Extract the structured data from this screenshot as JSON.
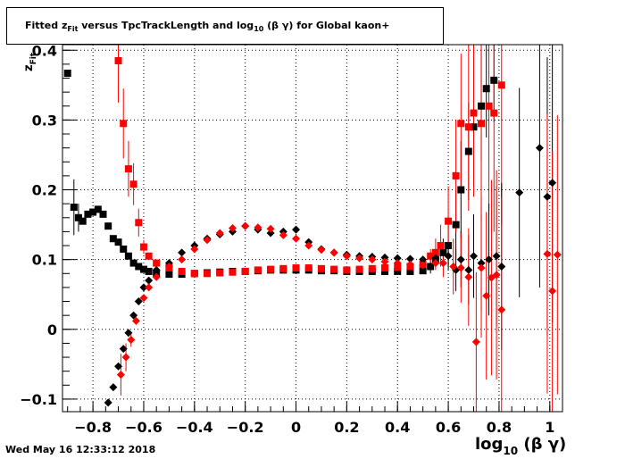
{
  "chart_data": {
    "type": "scatter",
    "title_parts": [
      "Fitted  z",
      "Fit",
      "  versus TpcTrackLength and log",
      "10",
      " (β γ) for Global kaon+"
    ],
    "ylabel_parts": [
      "z",
      "Fit"
    ],
    "xlabel_parts": [
      "log",
      "10",
      " (β γ)"
    ],
    "xlim": [
      -0.92,
      1.05
    ],
    "ylim": [
      -0.118,
      0.408
    ],
    "x_ticks": [
      -0.8,
      -0.6,
      -0.4,
      -0.2,
      0,
      0.2,
      0.4,
      0.6,
      0.8,
      1
    ],
    "x_tick_labels": [
      "−0.8",
      "−0.6",
      "−0.4",
      "−0.2",
      "0",
      "0.2",
      "0.4",
      "0.6",
      "0.8",
      "1"
    ],
    "y_ticks": [
      -0.1,
      0,
      0.1,
      0.2,
      0.3,
      0.4
    ],
    "y_tick_labels": [
      "−0.1",
      "0",
      "0.1",
      "0.2",
      "0.3",
      "0.4"
    ],
    "grid": true,
    "series": [
      {
        "marker": "square",
        "color": "#000000",
        "points": [
          [
            -0.9,
            0.367,
            0
          ],
          [
            -0.875,
            0.175,
            0.04
          ],
          [
            -0.857,
            0.16,
            0.02
          ],
          [
            -0.84,
            0.155,
            0
          ],
          [
            -0.82,
            0.165,
            0
          ],
          [
            -0.8,
            0.168,
            0
          ],
          [
            -0.78,
            0.172,
            0
          ],
          [
            -0.76,
            0.165,
            0
          ],
          [
            -0.74,
            0.148,
            0
          ],
          [
            -0.72,
            0.13,
            0
          ],
          [
            -0.7,
            0.125,
            0
          ],
          [
            -0.68,
            0.115,
            0
          ],
          [
            -0.66,
            0.105,
            0
          ],
          [
            -0.64,
            0.095,
            0
          ],
          [
            -0.62,
            0.09,
            0
          ],
          [
            -0.6,
            0.086,
            0
          ],
          [
            -0.58,
            0.083,
            0
          ],
          [
            -0.55,
            0.08,
            0
          ],
          [
            -0.5,
            0.079,
            0
          ],
          [
            -0.45,
            0.079,
            0
          ],
          [
            -0.4,
            0.08,
            0
          ],
          [
            -0.35,
            0.081,
            0
          ],
          [
            -0.3,
            0.082,
            0
          ],
          [
            -0.25,
            0.083,
            0
          ],
          [
            -0.2,
            0.083,
            0
          ],
          [
            -0.15,
            0.084,
            0
          ],
          [
            -0.1,
            0.085,
            0
          ],
          [
            -0.05,
            0.085,
            0
          ],
          [
            0,
            0.085,
            0
          ],
          [
            0.05,
            0.085,
            0
          ],
          [
            0.1,
            0.084,
            0
          ],
          [
            0.15,
            0.084,
            0
          ],
          [
            0.2,
            0.083,
            0
          ],
          [
            0.25,
            0.083,
            0
          ],
          [
            0.3,
            0.083,
            0
          ],
          [
            0.35,
            0.083,
            0
          ],
          [
            0.4,
            0.083,
            0
          ],
          [
            0.45,
            0.083,
            0
          ],
          [
            0.5,
            0.084,
            0
          ],
          [
            0.53,
            0.09,
            0.01
          ],
          [
            0.55,
            0.1,
            0.01
          ],
          [
            0.58,
            0.11,
            0.02
          ],
          [
            0.6,
            0.12,
            0.03
          ],
          [
            0.63,
            0.15,
            0.05
          ],
          [
            0.65,
            0.2,
            0.07
          ],
          [
            0.68,
            0.255,
            0.07
          ],
          [
            0.7,
            0.29,
            0.08
          ],
          [
            0.73,
            0.32,
            0.08
          ],
          [
            0.75,
            0.345,
            0.07
          ],
          [
            0.78,
            0.357,
            0.06
          ]
        ]
      },
      {
        "marker": "square",
        "color": "#ff0000",
        "points": [
          [
            -0.7,
            0.385,
            0.06
          ],
          [
            -0.68,
            0.295,
            0.05
          ],
          [
            -0.66,
            0.23,
            0.04
          ],
          [
            -0.64,
            0.208,
            0.03
          ],
          [
            -0.62,
            0.153,
            0.02
          ],
          [
            -0.6,
            0.118,
            0.01
          ],
          [
            -0.58,
            0.105,
            0
          ],
          [
            -0.55,
            0.095,
            0
          ],
          [
            -0.5,
            0.088,
            0
          ],
          [
            -0.45,
            0.083,
            0
          ],
          [
            -0.4,
            0.08,
            0
          ],
          [
            -0.35,
            0.08,
            0
          ],
          [
            -0.3,
            0.081,
            0
          ],
          [
            -0.25,
            0.082,
            0
          ],
          [
            -0.2,
            0.083,
            0
          ],
          [
            -0.15,
            0.085,
            0
          ],
          [
            -0.1,
            0.086,
            0
          ],
          [
            -0.05,
            0.087,
            0
          ],
          [
            0,
            0.088,
            0
          ],
          [
            0.05,
            0.088,
            0
          ],
          [
            0.1,
            0.087,
            0
          ],
          [
            0.15,
            0.086,
            0
          ],
          [
            0.2,
            0.085,
            0
          ],
          [
            0.25,
            0.086,
            0
          ],
          [
            0.3,
            0.087,
            0
          ],
          [
            0.35,
            0.088,
            0
          ],
          [
            0.4,
            0.089,
            0
          ],
          [
            0.45,
            0.09,
            0
          ],
          [
            0.5,
            0.093,
            0
          ],
          [
            0.53,
            0.105,
            0.01
          ],
          [
            0.55,
            0.11,
            0.02
          ],
          [
            0.57,
            0.12,
            0.03
          ],
          [
            0.6,
            0.155,
            0.05
          ],
          [
            0.63,
            0.22,
            0.08
          ],
          [
            0.65,
            0.295,
            0.1
          ],
          [
            0.68,
            0.29,
            0.12
          ],
          [
            0.7,
            0.31,
            0.12
          ],
          [
            0.73,
            0.295,
            0.14
          ],
          [
            0.76,
            0.32,
            0.15
          ],
          [
            0.78,
            0.31,
            0.17
          ],
          [
            0.81,
            0.35,
            0.2
          ]
        ]
      },
      {
        "marker": "diamond",
        "color": "#000000",
        "points": [
          [
            -0.76,
            -0.12,
            0
          ],
          [
            -0.74,
            -0.105,
            0
          ],
          [
            -0.72,
            -0.083,
            0
          ],
          [
            -0.7,
            -0.053,
            0
          ],
          [
            -0.68,
            -0.028,
            0
          ],
          [
            -0.66,
            -0.005,
            0
          ],
          [
            -0.64,
            0.02,
            0
          ],
          [
            -0.62,
            0.04,
            0
          ],
          [
            -0.6,
            0.06,
            0
          ],
          [
            -0.58,
            0.07,
            0
          ],
          [
            -0.55,
            0.085,
            0
          ],
          [
            -0.5,
            0.095,
            0
          ],
          [
            -0.45,
            0.11,
            0
          ],
          [
            -0.4,
            0.12,
            0
          ],
          [
            -0.35,
            0.13,
            0
          ],
          [
            -0.3,
            0.136,
            0
          ],
          [
            -0.25,
            0.14,
            0
          ],
          [
            -0.2,
            0.148,
            0
          ],
          [
            -0.15,
            0.143,
            0
          ],
          [
            -0.1,
            0.138,
            0
          ],
          [
            -0.05,
            0.14,
            0
          ],
          [
            0,
            0.143,
            0
          ],
          [
            0.05,
            0.125,
            0
          ],
          [
            0.1,
            0.115,
            0
          ],
          [
            0.15,
            0.11,
            0
          ],
          [
            0.2,
            0.107,
            0
          ],
          [
            0.25,
            0.105,
            0
          ],
          [
            0.3,
            0.104,
            0
          ],
          [
            0.35,
            0.103,
            0
          ],
          [
            0.4,
            0.102,
            0
          ],
          [
            0.45,
            0.101,
            0
          ],
          [
            0.5,
            0.1,
            0
          ],
          [
            0.55,
            0.102,
            0.01
          ],
          [
            0.6,
            0.105,
            0.02
          ],
          [
            0.63,
            0.085,
            0.03
          ],
          [
            0.65,
            0.1,
            0.04
          ],
          [
            0.68,
            0.085,
            0.05
          ],
          [
            0.7,
            0.105,
            0.06
          ],
          [
            0.73,
            0.095,
            0.07
          ],
          [
            0.76,
            0.1,
            0.08
          ],
          [
            0.79,
            0.105,
            0.1
          ],
          [
            0.81,
            0.09,
            0.12
          ],
          [
            0.88,
            0.196,
            0.15
          ],
          [
            0.96,
            0.26,
            0.2
          ],
          [
            0.99,
            0.19,
            0.2
          ],
          [
            1.01,
            0.21,
            0.2
          ]
        ]
      },
      {
        "marker": "diamond",
        "color": "#ff0000",
        "points": [
          [
            -0.69,
            -0.065,
            0.03
          ],
          [
            -0.67,
            -0.04,
            0.02
          ],
          [
            -0.65,
            -0.015,
            0.01
          ],
          [
            -0.63,
            0.012,
            0
          ],
          [
            -0.6,
            0.045,
            0
          ],
          [
            -0.58,
            0.06,
            0
          ],
          [
            -0.55,
            0.075,
            0
          ],
          [
            -0.5,
            0.09,
            0
          ],
          [
            -0.45,
            0.1,
            0
          ],
          [
            -0.4,
            0.115,
            0
          ],
          [
            -0.35,
            0.128,
            0
          ],
          [
            -0.3,
            0.138,
            0
          ],
          [
            -0.25,
            0.145,
            0
          ],
          [
            -0.2,
            0.148,
            0
          ],
          [
            -0.15,
            0.146,
            0
          ],
          [
            -0.1,
            0.144,
            0
          ],
          [
            -0.05,
            0.135,
            0
          ],
          [
            0,
            0.13,
            0
          ],
          [
            0.05,
            0.12,
            0
          ],
          [
            0.1,
            0.114,
            0
          ],
          [
            0.15,
            0.11,
            0
          ],
          [
            0.2,
            0.105,
            0
          ],
          [
            0.25,
            0.102,
            0
          ],
          [
            0.3,
            0.1,
            0
          ],
          [
            0.35,
            0.097,
            0
          ],
          [
            0.4,
            0.095,
            0
          ],
          [
            0.45,
            0.093,
            0
          ],
          [
            0.5,
            0.092,
            0
          ],
          [
            0.55,
            0.095,
            0.01
          ],
          [
            0.58,
            0.095,
            0.02
          ],
          [
            0.62,
            0.09,
            0.04
          ],
          [
            0.65,
            0.088,
            0.05
          ],
          [
            0.68,
            0.075,
            0.07
          ],
          [
            0.71,
            -0.018,
            0.1
          ],
          [
            0.73,
            0.088,
            0.1
          ],
          [
            0.75,
            0.048,
            0.12
          ],
          [
            0.77,
            0.074,
            0.14
          ],
          [
            0.79,
            0.078,
            0.15
          ],
          [
            0.81,
            0.028,
            0.16
          ],
          [
            0.99,
            0.108,
            0.2
          ],
          [
            1.01,
            0.055,
            0.2
          ],
          [
            1.03,
            0.107,
            0.2
          ]
        ]
      }
    ]
  },
  "timestamp": "Wed May 16 12:33:12 2018"
}
